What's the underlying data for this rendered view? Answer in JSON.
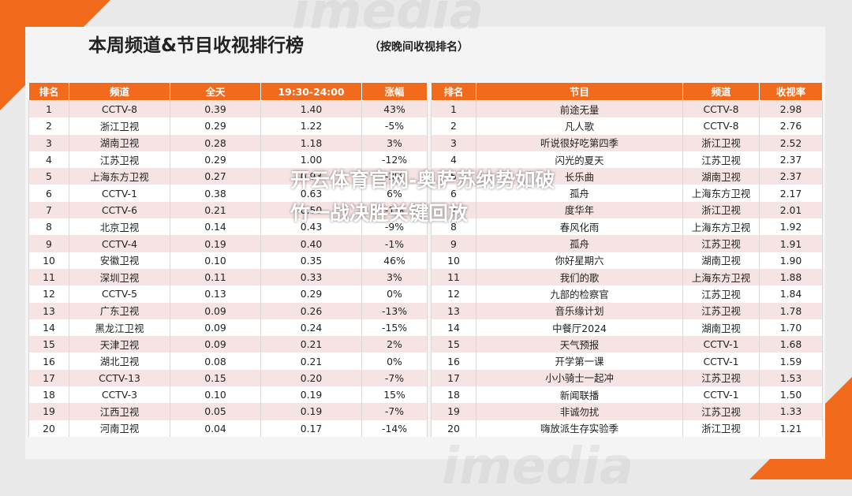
{
  "header": {
    "title": "本周频道&节目收视排行榜",
    "subtitle": "（按晚间收视排名）"
  },
  "overlay_text": "开云体育官网-奥萨苏纳势如破竹一战决胜关键回放",
  "watermark_text": "imedia",
  "colors": {
    "accent": "#f26a1b",
    "row_tint": "#f6e3e3"
  },
  "channel_table": {
    "headers": [
      "排名",
      "频道",
      "全天",
      "19:30-24:00",
      "涨幅"
    ],
    "rows": [
      [
        "1",
        "CCTV-8",
        "0.39",
        "1.40",
        "43%"
      ],
      [
        "2",
        "浙江卫视",
        "0.29",
        "1.22",
        "-5%"
      ],
      [
        "3",
        "湖南卫视",
        "0.28",
        "1.18",
        "3%"
      ],
      [
        "4",
        "江苏卫视",
        "0.29",
        "1.00",
        "-12%"
      ],
      [
        "5",
        "上海东方卫视",
        "0.27",
        "0.93",
        "-3%"
      ],
      [
        "6",
        "CCTV-1",
        "0.38",
        "0.63",
        "6%"
      ],
      [
        "7",
        "CCTV-6",
        "0.21",
        "0.50",
        "-1%"
      ],
      [
        "8",
        "北京卫视",
        "0.14",
        "0.43",
        "-9%"
      ],
      [
        "9",
        "CCTV-4",
        "0.19",
        "0.40",
        "-1%"
      ],
      [
        "10",
        "安徽卫视",
        "0.10",
        "0.35",
        "46%"
      ],
      [
        "11",
        "深圳卫视",
        "0.11",
        "0.33",
        "3%"
      ],
      [
        "12",
        "CCTV-5",
        "0.13",
        "0.29",
        "0%"
      ],
      [
        "13",
        "广东卫视",
        "0.09",
        "0.26",
        "-13%"
      ],
      [
        "14",
        "黑龙江卫视",
        "0.09",
        "0.24",
        "-15%"
      ],
      [
        "15",
        "天津卫视",
        "0.09",
        "0.21",
        "2%"
      ],
      [
        "16",
        "湖北卫视",
        "0.08",
        "0.21",
        "0%"
      ],
      [
        "17",
        "CCTV-13",
        "0.15",
        "0.20",
        "-7%"
      ],
      [
        "18",
        "CCTV-3",
        "0.10",
        "0.19",
        "15%"
      ],
      [
        "19",
        "江西卫视",
        "0.05",
        "0.19",
        "-7%"
      ],
      [
        "20",
        "河南卫视",
        "0.04",
        "0.17",
        "-14%"
      ]
    ]
  },
  "program_table": {
    "headers": [
      "排名",
      "节目",
      "频道",
      "收视率"
    ],
    "rows": [
      [
        "1",
        "前途无量",
        "CCTV-8",
        "2.98"
      ],
      [
        "2",
        "凡人歌",
        "CCTV-8",
        "2.76"
      ],
      [
        "3",
        "听说很好吃第四季",
        "浙江卫视",
        "2.52"
      ],
      [
        "4",
        "闪光的夏天",
        "江苏卫视",
        "2.37"
      ],
      [
        "5",
        "长乐曲",
        "湖南卫视",
        "2.37"
      ],
      [
        "6",
        "孤舟",
        "上海东方卫视",
        "2.17"
      ],
      [
        "7",
        "度华年",
        "浙江卫视",
        "2.01"
      ],
      [
        "8",
        "春风化雨",
        "上海东方卫视",
        "1.92"
      ],
      [
        "9",
        "孤舟",
        "江苏卫视",
        "1.91"
      ],
      [
        "10",
        "你好星期六",
        "湖南卫视",
        "1.90"
      ],
      [
        "11",
        "我们的歌",
        "上海东方卫视",
        "1.88"
      ],
      [
        "12",
        "九部的检察官",
        "江苏卫视",
        "1.84"
      ],
      [
        "13",
        "音乐缘计划",
        "江苏卫视",
        "1.78"
      ],
      [
        "14",
        "中餐厅2024",
        "湖南卫视",
        "1.70"
      ],
      [
        "15",
        "天气预报",
        "CCTV-1",
        "1.68"
      ],
      [
        "16",
        "开学第一课",
        "CCTV-1",
        "1.59"
      ],
      [
        "17",
        "小小骑士一起冲",
        "江苏卫视",
        "1.53"
      ],
      [
        "18",
        "新闻联播",
        "CCTV-1",
        "1.50"
      ],
      [
        "19",
        "非诚勿扰",
        "江苏卫视",
        "1.33"
      ],
      [
        "20",
        "嗨放派生存实验季",
        "浙江卫视",
        "1.21"
      ]
    ]
  }
}
